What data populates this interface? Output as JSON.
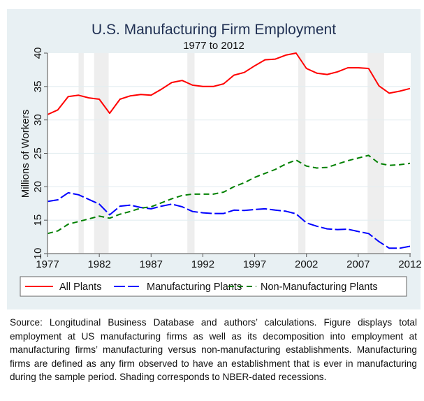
{
  "colors": {
    "panel_bg": "#e8f0f3",
    "plot_bg": "#ffffff",
    "grid": "#e4eef1",
    "recession": "#eeeeee",
    "axis": "#888888"
  },
  "chart_data": {
    "type": "line",
    "title": "U.S. Manufacturing Firm Employment",
    "subtitle": "1977 to 2012",
    "xlabel": "",
    "ylabel": "Millions of Workers",
    "xlim": [
      1977,
      2012
    ],
    "ylim": [
      10,
      40
    ],
    "xticks": [
      1977,
      1982,
      1987,
      1992,
      1997,
      2002,
      2007,
      2012
    ],
    "xtick_labels": [
      "1977",
      "1982",
      "1987",
      "1992",
      "1997",
      "2002",
      "2007",
      "2012"
    ],
    "yticks": [
      10,
      15,
      20,
      25,
      30,
      35,
      40
    ],
    "ytick_labels": [
      "10",
      "15",
      "20",
      "25",
      "30",
      "35",
      "40"
    ],
    "grid": true,
    "legend_position": "bottom",
    "recessions": [
      [
        1980.0,
        1980.5
      ],
      [
        1981.5,
        1982.9
      ],
      [
        1990.5,
        1991.2
      ],
      [
        2001.2,
        2001.9
      ],
      [
        2007.9,
        2009.5
      ]
    ],
    "x": [
      1977,
      1978,
      1979,
      1980,
      1981,
      1982,
      1983,
      1984,
      1985,
      1986,
      1987,
      1988,
      1989,
      1990,
      1991,
      1992,
      1993,
      1994,
      1995,
      1996,
      1997,
      1998,
      1999,
      2000,
      2001,
      2002,
      2003,
      2004,
      2005,
      2006,
      2007,
      2008,
      2009,
      2010,
      2011,
      2012
    ],
    "series": [
      {
        "name": "All Plants",
        "color": "#ff0000",
        "style": "solid",
        "values": [
          30.8,
          31.5,
          33.5,
          33.7,
          33.3,
          33.1,
          31.0,
          33.1,
          33.6,
          33.8,
          33.7,
          34.6,
          35.6,
          35.9,
          35.2,
          35.0,
          35.0,
          35.4,
          36.7,
          37.1,
          38.1,
          39.0,
          39.1,
          39.7,
          40.0,
          37.7,
          37.0,
          36.8,
          37.2,
          37.8,
          37.8,
          37.7,
          35.1,
          34.0,
          34.3,
          34.7
        ]
      },
      {
        "name": "Manufacturing Plants",
        "color": "#0000ff",
        "style": "long-dash",
        "values": [
          17.8,
          18.05,
          19.1,
          18.8,
          18.1,
          17.4,
          15.8,
          17.1,
          17.25,
          16.9,
          16.7,
          17.1,
          17.4,
          17.0,
          16.3,
          16.1,
          16.0,
          16.0,
          16.5,
          16.45,
          16.6,
          16.7,
          16.5,
          16.35,
          15.95,
          14.6,
          14.1,
          13.7,
          13.6,
          13.65,
          13.3,
          13.0,
          11.8,
          10.8,
          10.8,
          11.1
        ]
      },
      {
        "name": "Non-Manufacturing Plants",
        "color": "#008000",
        "style": "short-dash",
        "values": [
          13.0,
          13.4,
          14.4,
          14.8,
          15.2,
          15.6,
          15.3,
          15.9,
          16.3,
          16.8,
          17.0,
          17.6,
          18.2,
          18.7,
          18.9,
          18.9,
          18.9,
          19.2,
          20.0,
          20.6,
          21.4,
          22.0,
          22.6,
          23.4,
          24.0,
          23.1,
          22.8,
          22.9,
          23.4,
          23.9,
          24.3,
          24.7,
          23.5,
          23.2,
          23.3,
          23.5
        ]
      }
    ]
  },
  "caption": "Source: Longitudinal Business Database and authors’ calculations. Figure displays total employment at US manufacturing firms as well as its decomposition into employment at manufacturing firms’ manufacturing versus non-manufacturing establishments. Manufacturing firms are defined as any firm observed to have an establishment that is ever in manufacturing during the sample period. Shading corresponds to NBER-dated recessions."
}
